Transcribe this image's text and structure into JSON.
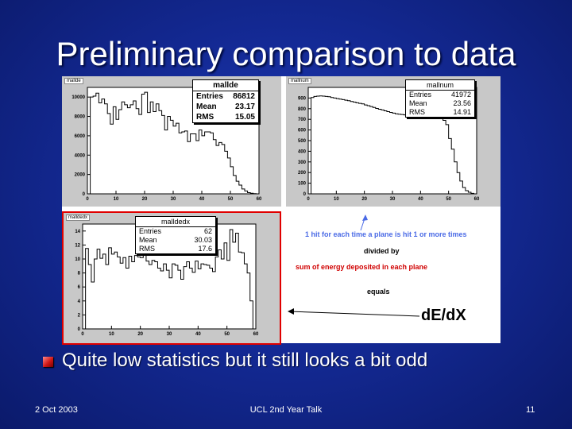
{
  "slide": {
    "title": "Preliminary comparison to data",
    "bullet": "Quite low statistics but it still looks a bit odd",
    "footer_left": "2 Oct 2003",
    "footer_center": "UCL 2nd Year Talk",
    "footer_right": "11"
  },
  "colors": {
    "background": "#142a96",
    "title_text": "#ffffff",
    "bullet": "#d01818",
    "highlight_border": "#e00000",
    "annotation_blue": "#4a6ae6",
    "annotation_red": "#d00000"
  },
  "histograms": {
    "mallde": {
      "name": "mallde",
      "stats_title": "mallde",
      "stats": [
        {
          "label": "Entries",
          "value": "86812"
        },
        {
          "label": "Mean",
          "value": "23.17"
        },
        {
          "label": "RMS",
          "value": "15.05"
        }
      ]
    },
    "mallnum": {
      "name": "mallnum",
      "stats_title": "mallnum",
      "stats": [
        {
          "label": "Entries",
          "value": "41972"
        },
        {
          "label": "Mean",
          "value": "23.56"
        },
        {
          "label": "RMS",
          "value": "14.91"
        }
      ]
    },
    "malldedx": {
      "name": "malldedx",
      "stats_title": "malldedx",
      "stats": [
        {
          "label": "Entries",
          "value": "62"
        },
        {
          "label": "Mean",
          "value": "30.03"
        },
        {
          "label": "RMS",
          "value": "17.6"
        }
      ]
    }
  },
  "annotation": {
    "line1": "1 hit for each time a plane is hit 1 or more times",
    "line2": "divided by",
    "line3": "sum of energy deposited in each plane",
    "line4": "equals",
    "line5": "dE/dX"
  },
  "chart_data": [
    {
      "type": "bar",
      "name": "mallde",
      "xlim": [
        0,
        60
      ],
      "ylim": [
        0,
        11000
      ],
      "x_ticks": [
        "0",
        "10",
        "20",
        "30",
        "40",
        "50",
        "60"
      ],
      "y_ticks": [
        "0",
        "2000",
        "4000",
        "6000",
        "8000",
        "10000"
      ],
      "bin_width": 1,
      "values": [
        0,
        10000,
        10100,
        10400,
        9400,
        9800,
        9300,
        8300,
        7200,
        9000,
        7700,
        8700,
        9500,
        9200,
        8900,
        9200,
        9600,
        8800,
        8200,
        10300,
        10500,
        8400,
        9500,
        8500,
        9300,
        8600,
        8100,
        6600,
        8000,
        7600,
        7000,
        7300,
        6300,
        6400,
        6500,
        5400,
        6200,
        6200,
        5500,
        6600,
        6000,
        6400,
        6400,
        6300,
        5600,
        5000,
        5300,
        5100,
        4400,
        3700,
        2800,
        1900,
        1300,
        900,
        500,
        300,
        120,
        60,
        20,
        0
      ]
    },
    {
      "type": "bar",
      "name": "mallnum",
      "xlim": [
        0,
        60
      ],
      "ylim": [
        0,
        1000
      ],
      "x_ticks": [
        "0",
        "10",
        "20",
        "30",
        "40",
        "50",
        "60"
      ],
      "y_ticks": [
        "0",
        "100",
        "200",
        "300",
        "400",
        "500",
        "600",
        "700",
        "800",
        "900"
      ],
      "bin_width": 1,
      "values": [
        0,
        905,
        915,
        918,
        920,
        918,
        915,
        912,
        905,
        900,
        895,
        890,
        885,
        880,
        875,
        868,
        862,
        855,
        850,
        845,
        835,
        828,
        820,
        812,
        802,
        795,
        788,
        780,
        772,
        765,
        758,
        752,
        748,
        745,
        742,
        740,
        740,
        740,
        740,
        740,
        740,
        738,
        740,
        738,
        735,
        730,
        722,
        710,
        690,
        650,
        520,
        420,
        300,
        200,
        120,
        60,
        30,
        15,
        5,
        0
      ]
    },
    {
      "type": "bar",
      "name": "malldedx",
      "xlim": [
        0,
        60
      ],
      "ylim": [
        0,
        15
      ],
      "x_ticks": [
        "0",
        "10",
        "20",
        "30",
        "40",
        "50",
        "60"
      ],
      "y_ticks": [
        "0",
        "2",
        "4",
        "6",
        "8",
        "10",
        "12",
        "14"
      ],
      "bin_width": 1,
      "values": [
        0,
        11.5,
        9.2,
        6.7,
        10,
        11.4,
        10.1,
        10.7,
        9.2,
        11.6,
        10.7,
        11,
        10.3,
        9.4,
        10.2,
        8.7,
        10.4,
        9.6,
        10.5,
        10.3,
        10.2,
        11.8,
        9.7,
        9.2,
        9.8,
        9.6,
        8.7,
        8.3,
        9.3,
        8.4,
        7.3,
        9.3,
        9.1,
        8.4,
        7.1,
        8.9,
        9.6,
        8.7,
        8.1,
        9.7,
        8.6,
        9.3,
        9.2,
        9.1,
        8.7,
        8.2,
        10.3,
        11.3,
        10,
        12.3,
        9.8,
        14.2,
        12.4,
        13.7,
        11,
        10.9,
        9.3,
        8,
        4,
        0
      ]
    }
  ]
}
